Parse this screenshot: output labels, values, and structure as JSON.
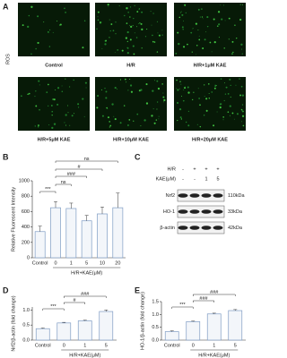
{
  "panel_a": {
    "label": "A",
    "y_label": "ROS",
    "images": [
      {
        "caption": "Control"
      },
      {
        "caption": "H/R"
      },
      {
        "caption": "H/R+1μM KAE"
      },
      {
        "caption": "H/R+5μM KAE"
      },
      {
        "caption": "H/R+10μM KAE"
      },
      {
        "caption": "H/R+20μM KAE"
      }
    ]
  },
  "panel_c": {
    "label": "C",
    "conditions": [
      {
        "name": "H/R",
        "marks": [
          "-",
          "+",
          "+",
          "+"
        ]
      },
      {
        "name": "KAE(μM)",
        "marks": [
          "-",
          "-",
          "1",
          "5"
        ]
      }
    ],
    "bands": [
      {
        "name": "Nrf2",
        "size": "110kDa"
      },
      {
        "name": "HO-1",
        "size": "33kDa"
      },
      {
        "name": "β-actin",
        "size": "42kDa"
      }
    ]
  },
  "chart_data": [
    {
      "type": "bar",
      "panel_label": "B",
      "y_label": "Relative Fluorescent Intensity",
      "x_group_label": "H/R+KAE(μM)",
      "categories": [
        "Control",
        "0",
        "1",
        "5",
        "10",
        "20"
      ],
      "values": [
        340,
        650,
        640,
        480,
        570,
        650
      ],
      "errors": [
        70,
        80,
        70,
        70,
        90,
        190
      ],
      "color": "#f3f6fa",
      "edge_color": "#7f9cc4",
      "ylim": [
        0,
        1000
      ],
      "yticks": [
        0,
        200,
        400,
        600,
        800,
        1000
      ],
      "annotations": [
        "***",
        "ns",
        "###",
        "#",
        "ns"
      ]
    },
    {
      "type": "bar",
      "panel_label": "D",
      "y_label": "Nrf2/β-actin (fold change)",
      "x_group_label": "H/R+KAE(μM)",
      "categories": [
        "Control",
        "0",
        "1",
        "5"
      ],
      "values": [
        0.38,
        0.57,
        0.64,
        0.95
      ],
      "errors": [
        0.02,
        0.02,
        0.02,
        0.05
      ],
      "color": "#f3f6fa",
      "edge_color": "#7f9cc4",
      "ylim": [
        0,
        1.1
      ],
      "yticks": [
        {
          "value": 0,
          "label": "0.0"
        },
        {
          "value": 0.5,
          "label": "0.5"
        },
        {
          "value": 1,
          "label": "1.0"
        }
      ],
      "annotations": [
        "***",
        "#",
        "###"
      ]
    },
    {
      "type": "bar",
      "panel_label": "E",
      "y_label": "HO-1/β-actin (fold change)",
      "x_group_label": "H/R+KAE(μM)",
      "categories": [
        "Control",
        "0",
        "1",
        "5"
      ],
      "values": [
        0.33,
        0.72,
        1.02,
        1.15
      ],
      "errors": [
        0.03,
        0.02,
        0.03,
        0.04
      ],
      "color": "#f3f6fa",
      "edge_color": "#7f9cc4",
      "ylim": [
        0,
        1.5
      ],
      "yticks": [
        {
          "value": 0,
          "label": "0.0"
        },
        {
          "value": 0.5,
          "label": "0.5"
        },
        {
          "value": 1,
          "label": "1.0"
        },
        {
          "value": 1.5,
          "label": "1.5"
        }
      ],
      "annotations": [
        "***",
        "###",
        "###"
      ]
    }
  ]
}
